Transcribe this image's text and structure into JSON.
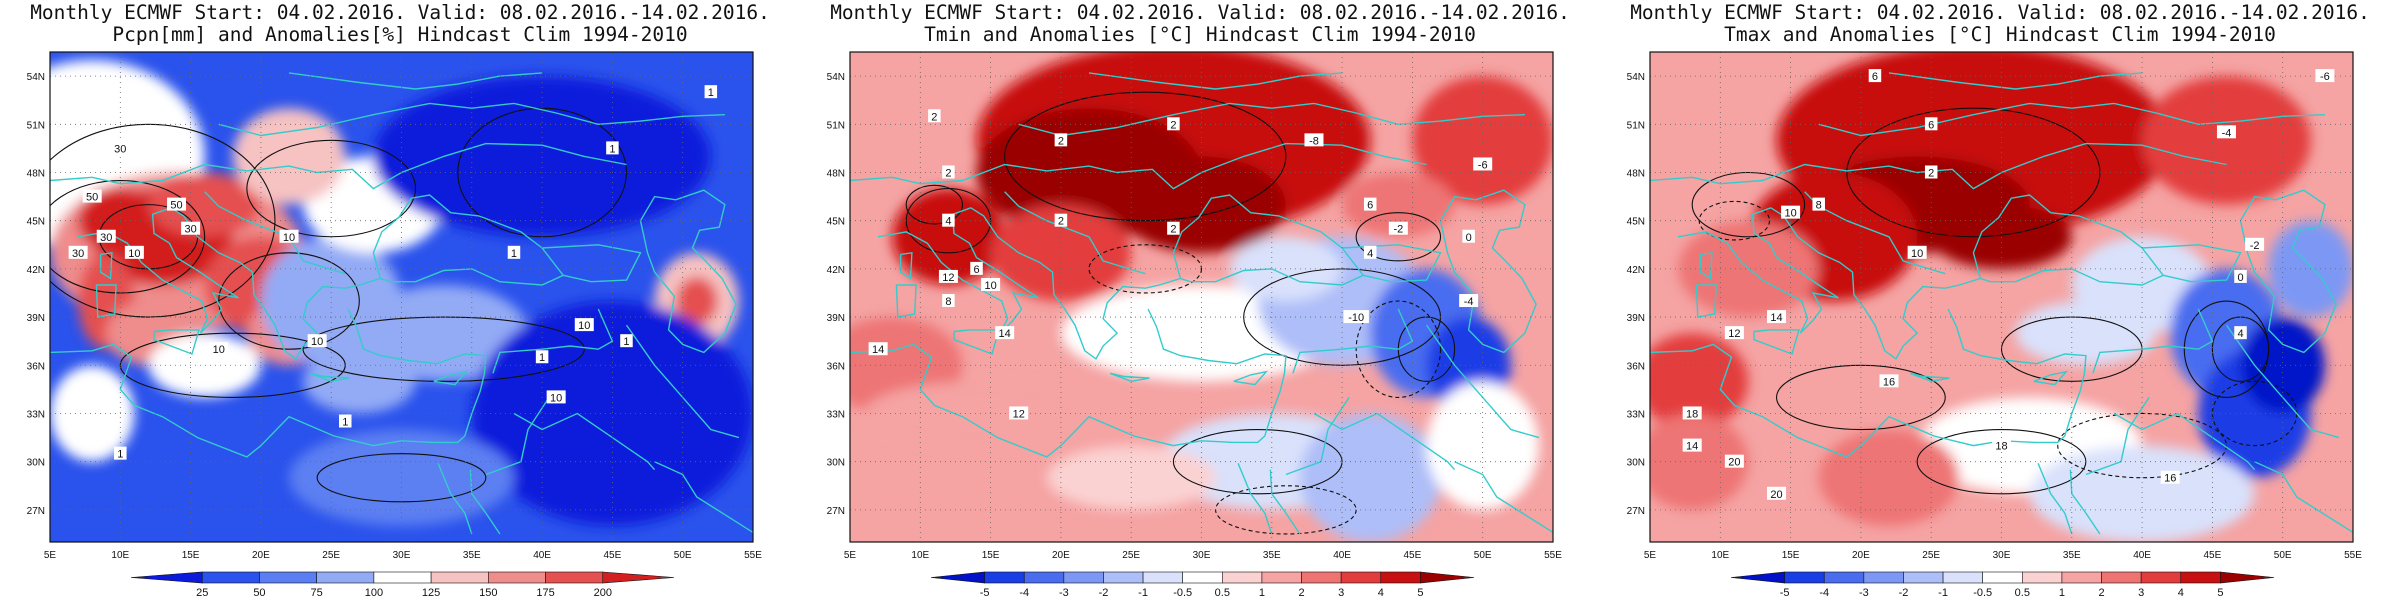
{
  "panels": [
    {
      "title_line1": "Monthly ECMWF Start: 04.02.2016. Valid: 08.02.2016.-14.02.2016.",
      "title_line2": "Pcpn[mm] and Anomalies[%] Hindcast Clim 1994-2010",
      "colorbar_ticks": [
        "25",
        "50",
        "75",
        "100",
        "125",
        "150",
        "175",
        "200"
      ],
      "colorbar_colors": [
        "#0b1adb",
        "#2a52ec",
        "#5b7ff2",
        "#93aaf5",
        "#ffffff",
        "#f6c2c2",
        "#ef8c8c",
        "#e55050",
        "#d31f1f"
      ],
      "contour_labels": [
        "1",
        "1",
        "1",
        "1",
        "1",
        "1",
        "1",
        "10",
        "10",
        "10",
        "10",
        "10",
        "10",
        "30",
        "30",
        "30",
        "30",
        "50",
        "50"
      ]
    },
    {
      "title_line1": "Monthly ECMWF Start: 04.02.2016. Valid: 08.02.2016.-14.02.2016.",
      "title_line2": "Tmin and Anomalies [°C] Hindcast Clim 1994-2010",
      "colorbar_ticks": [
        "-5",
        "-4",
        "-3",
        "-2",
        "-1",
        "-0.5",
        "0.5",
        "1",
        "2",
        "3",
        "4",
        "5"
      ],
      "colorbar_colors": [
        "#0012c8",
        "#1a3ee6",
        "#4a6df0",
        "#7d98f4",
        "#aebef8",
        "#d9e1fb",
        "#ffffff",
        "#fbd2d2",
        "#f5a3a3",
        "#ee7474",
        "#e33c3c",
        "#c81010",
        "#9a0000"
      ],
      "contour_labels": [
        "2",
        "2",
        "2",
        "2",
        "2",
        "2",
        "4",
        "4",
        "6",
        "6",
        "8",
        "10",
        "12",
        "12",
        "14",
        "14",
        "-2",
        "-4",
        "-6",
        "-8",
        "-10",
        "0"
      ]
    },
    {
      "title_line1": "Monthly ECMWF Start: 04.02.2016. Valid: 08.02.2016.-14.02.2016.",
      "title_line2": "Tmax and Anomalies [°C] Hindcast Clim 1994-2010",
      "colorbar_ticks": [
        "-5",
        "-4",
        "-3",
        "-2",
        "-1",
        "-0.5",
        "0.5",
        "1",
        "2",
        "3",
        "4",
        "5"
      ],
      "colorbar_colors": [
        "#0012c8",
        "#1a3ee6",
        "#4a6df0",
        "#7d98f4",
        "#aebef8",
        "#d9e1fb",
        "#ffffff",
        "#fbd2d2",
        "#f5a3a3",
        "#ee7474",
        "#e33c3c",
        "#c81010",
        "#9a0000"
      ],
      "contour_labels": [
        "6",
        "6",
        "8",
        "10",
        "10",
        "12",
        "14",
        "14",
        "16",
        "16",
        "18",
        "18",
        "20",
        "20",
        "-6",
        "-4",
        "-2",
        "0",
        "2",
        "4"
      ]
    }
  ],
  "map": {
    "lat_labels": [
      "54N",
      "51N",
      "48N",
      "45N",
      "42N",
      "39N",
      "36N",
      "33N",
      "30N",
      "27N"
    ],
    "lon_labels": [
      "5E",
      "10E",
      "15E",
      "20E",
      "25E",
      "30E",
      "35E",
      "40E",
      "45E",
      "50E",
      "55E"
    ],
    "grid": "dotted",
    "coastline_color": "#33cccc"
  }
}
